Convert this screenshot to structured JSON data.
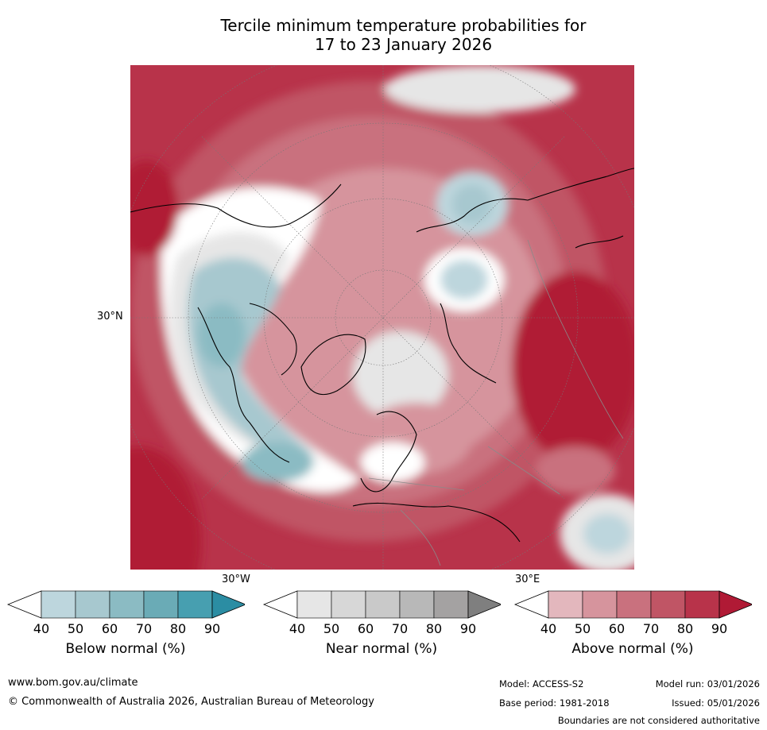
{
  "title": {
    "line1": "Tercile minimum temperature probabilities for",
    "line2": "17 to 23 January 2026"
  },
  "map": {
    "lat_label": "30°N",
    "lon_labels": {
      "west": "30°W",
      "east": "30°E"
    }
  },
  "legends": [
    {
      "title": "Below normal (%)",
      "ticks": [
        "40",
        "50",
        "60",
        "70",
        "80",
        "90"
      ],
      "colors": [
        "#ffffff",
        "#bdd6dd",
        "#a7c8cf",
        "#8bbbc3",
        "#6aabb6",
        "#479fb0",
        "#2b8da3"
      ]
    },
    {
      "title": "Near normal (%)",
      "ticks": [
        "40",
        "50",
        "60",
        "70",
        "80",
        "90"
      ],
      "colors": [
        "#ffffff",
        "#e6e6e6",
        "#d7d7d7",
        "#c9c9c9",
        "#b8b8b8",
        "#a4a2a2",
        "#7f7f7f"
      ]
    },
    {
      "title": "Above normal (%)",
      "ticks": [
        "40",
        "50",
        "60",
        "70",
        "80",
        "90"
      ],
      "colors": [
        "#ffffff",
        "#e3b7bd",
        "#d6949d",
        "#c9717e",
        "#c05565",
        "#b8334a",
        "#b01a35"
      ]
    }
  ],
  "footer": {
    "website": "www.bom.gov.au/climate",
    "copyright": "© Commonwealth of Australia 2026, Australian Bureau of Meteorology",
    "model": "Model: ACCESS-S2",
    "base_period": "Base period: 1981-2018",
    "model_run": "Model run: 03/01/2026",
    "issued": "Issued: 05/01/2026",
    "boundaries_note": "Boundaries are not considered authoritative"
  }
}
